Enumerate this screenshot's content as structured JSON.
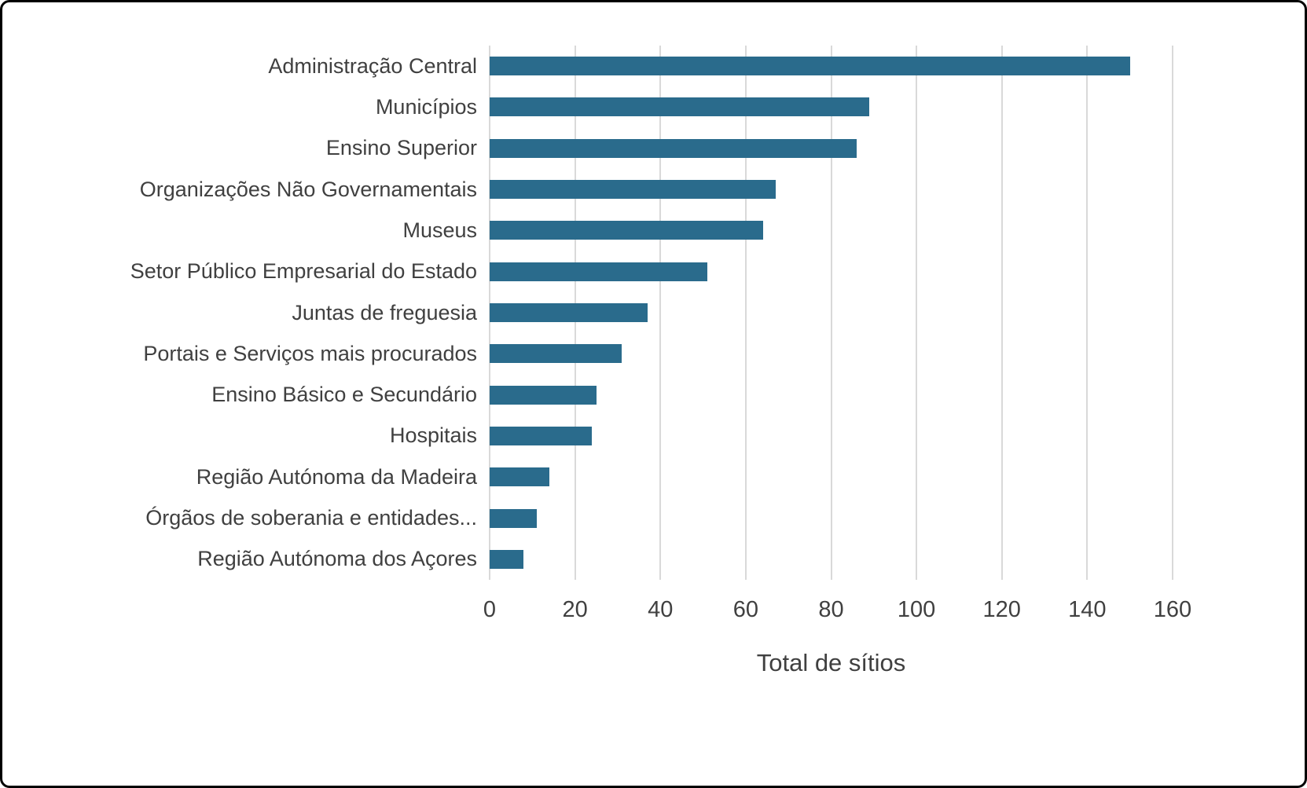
{
  "chart_data": {
    "type": "bar",
    "orientation": "horizontal",
    "title": "",
    "xlabel": "Total de sítios",
    "ylabel": "",
    "xlim": [
      0,
      160
    ],
    "xticks": [
      0,
      20,
      40,
      60,
      80,
      100,
      120,
      140,
      160
    ],
    "grid": true,
    "legend": false,
    "bar_color": "#2A6B8C",
    "gridline_color": "#D9D9D9",
    "text_color": "#404040",
    "categories": [
      "Administração Central",
      "Municípios",
      "Ensino Superior",
      "Organizações Não Governamentais",
      "Museus",
      "Setor Público Empresarial do Estado",
      "Juntas de freguesia",
      "Portais e Serviços mais procurados",
      "Ensino Básico e Secundário",
      "Hospitais",
      "Região Autónoma da Madeira",
      "Órgãos de soberania e entidades...",
      "Região Autónoma dos Açores"
    ],
    "values": [
      150,
      89,
      86,
      67,
      64,
      51,
      37,
      31,
      25,
      24,
      14,
      11,
      8
    ]
  }
}
